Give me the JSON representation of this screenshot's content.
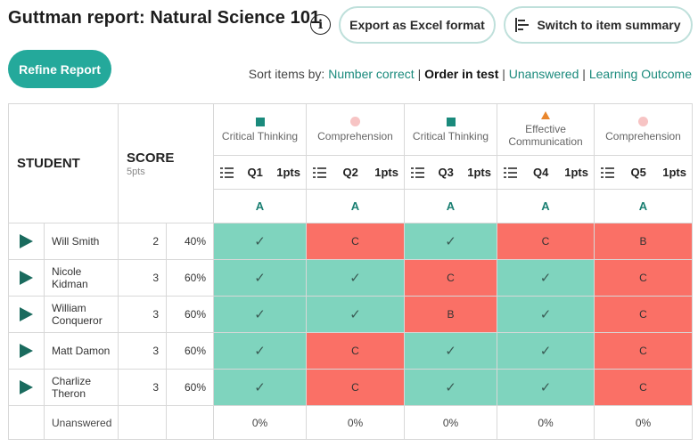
{
  "header": {
    "title": "Guttman report: Natural Science 101",
    "info_icon": "info-icon",
    "export_label": "Export as Excel format",
    "switch_label": "Switch to item summary",
    "switch_icon": "bar-chart-icon"
  },
  "toolbar": {
    "refine_label": "Refine Report",
    "sort_prefix": "Sort items by:",
    "sort_options": [
      {
        "label": "Number correct",
        "active": false
      },
      {
        "label": "Order in test",
        "active": true
      },
      {
        "label": "Unanswered",
        "active": false
      },
      {
        "label": "Learning Outcome",
        "active": false
      }
    ],
    "separator": "|"
  },
  "colors": {
    "accent": "#24a99b",
    "correct": "#7fd4be",
    "incorrect": "#fa7066",
    "outcome_critical": "#1a8a7c",
    "outcome_comprehension": "#f7c4c4",
    "outcome_communication": "#e9862c"
  },
  "table": {
    "student_header": "STUDENT",
    "score_header": "SCORE",
    "score_sub": "5pts",
    "questions": [
      {
        "outcome": "Critical Thinking",
        "marker": "square",
        "label": "Q1",
        "points": "1pts",
        "answer": "A"
      },
      {
        "outcome": "Comprehension",
        "marker": "circle",
        "label": "Q2",
        "points": "1pts",
        "answer": "A"
      },
      {
        "outcome": "Critical Thinking",
        "marker": "square",
        "label": "Q3",
        "points": "1pts",
        "answer": "A"
      },
      {
        "outcome": "Effective Communication",
        "marker": "triangle",
        "label": "Q4",
        "points": "1pts",
        "answer": "A"
      },
      {
        "outcome": "Comprehension",
        "marker": "circle",
        "label": "Q5",
        "points": "1pts",
        "answer": "A"
      }
    ],
    "rows": [
      {
        "name": "Will Smith",
        "score": "2",
        "percent": "40%",
        "responses": [
          "✓",
          "C",
          "✓",
          "C",
          "B"
        ],
        "correct": [
          true,
          false,
          true,
          false,
          false
        ]
      },
      {
        "name": "Nicole Kidman",
        "score": "3",
        "percent": "60%",
        "responses": [
          "✓",
          "✓",
          "C",
          "✓",
          "C"
        ],
        "correct": [
          true,
          true,
          false,
          true,
          false
        ]
      },
      {
        "name": "William Conqueror",
        "score": "3",
        "percent": "60%",
        "responses": [
          "✓",
          "✓",
          "B",
          "✓",
          "C"
        ],
        "correct": [
          true,
          true,
          false,
          true,
          false
        ]
      },
      {
        "name": "Matt Damon",
        "score": "3",
        "percent": "60%",
        "responses": [
          "✓",
          "C",
          "✓",
          "✓",
          "C"
        ],
        "correct": [
          true,
          false,
          true,
          true,
          false
        ]
      },
      {
        "name": "Charlize Theron",
        "score": "3",
        "percent": "60%",
        "responses": [
          "✓",
          "C",
          "✓",
          "✓",
          "C"
        ],
        "correct": [
          true,
          false,
          true,
          true,
          false
        ]
      }
    ],
    "footer": {
      "label": "Unanswered",
      "values": [
        "0%",
        "0%",
        "0%",
        "0%",
        "0%"
      ]
    }
  }
}
